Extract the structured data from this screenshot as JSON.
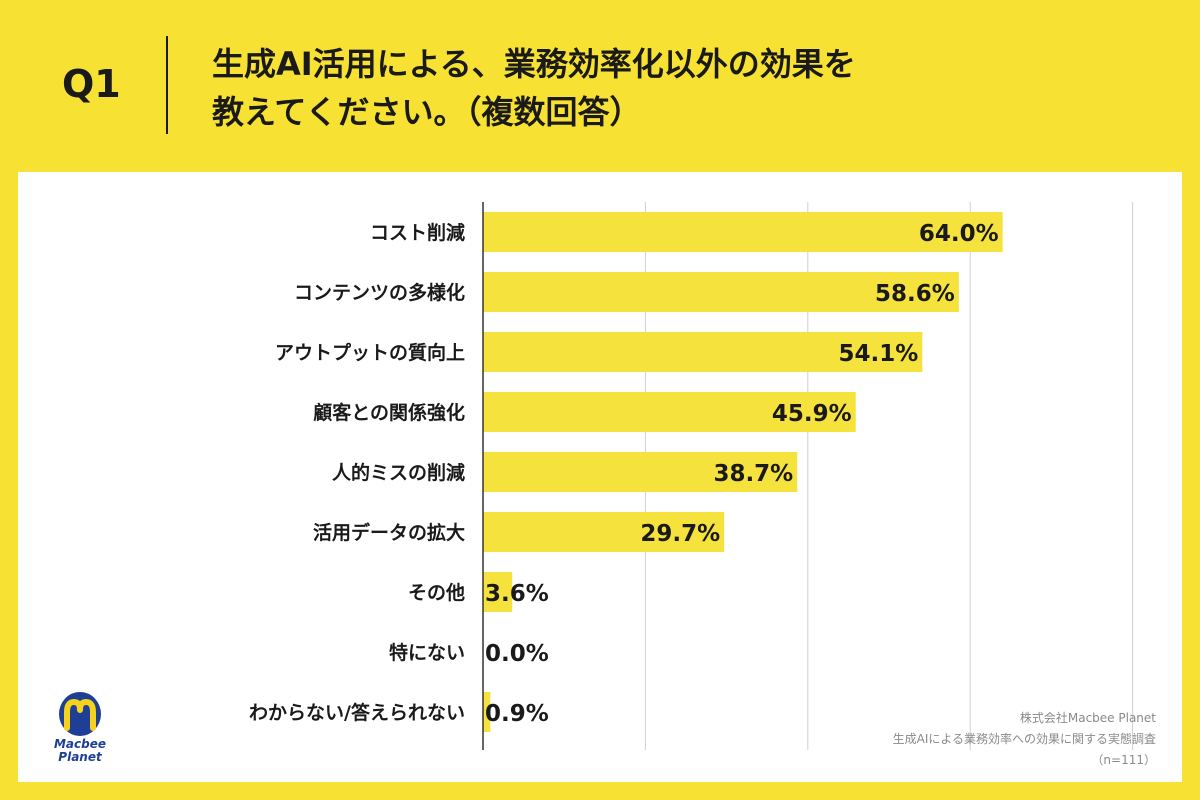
{
  "header": {
    "q_label": "Q1",
    "title_line1": "生成AI活用による、業務効率化以外の効果を",
    "title_line2": "教えてください。（複数回答）"
  },
  "colors": {
    "background": "#f7e133",
    "bar": "#f5e23c",
    "panel": "#ffffff",
    "text": "#1a1a1a",
    "logo_blue": "#1f3f96",
    "logo_yellow": "#f5d21e"
  },
  "chart_data": {
    "type": "bar",
    "orientation": "horizontal",
    "categories": [
      "コスト削減",
      "コンテンツの多様化",
      "アウトプットの質向上",
      "顧客との関係強化",
      "人的ミスの削減",
      "活用データの拡大",
      "その他",
      "特にない",
      "わからない/答えられない"
    ],
    "values": [
      64.0,
      58.6,
      54.1,
      45.9,
      38.7,
      29.7,
      3.6,
      0.0,
      0.9
    ],
    "value_labels": [
      "64.0%",
      "58.6%",
      "54.1%",
      "45.9%",
      "38.7%",
      "29.7%",
      "3.6%",
      "0.0%",
      "0.9%"
    ],
    "xlim": [
      0,
      80
    ],
    "grid": true
  },
  "logo": {
    "line1": "Macbee",
    "line2": "Planet"
  },
  "footer": {
    "company": "株式会社Macbee Planet",
    "survey": "生成AIによる業務効率への効果に関する実態調査",
    "sample": "（n=111）"
  }
}
